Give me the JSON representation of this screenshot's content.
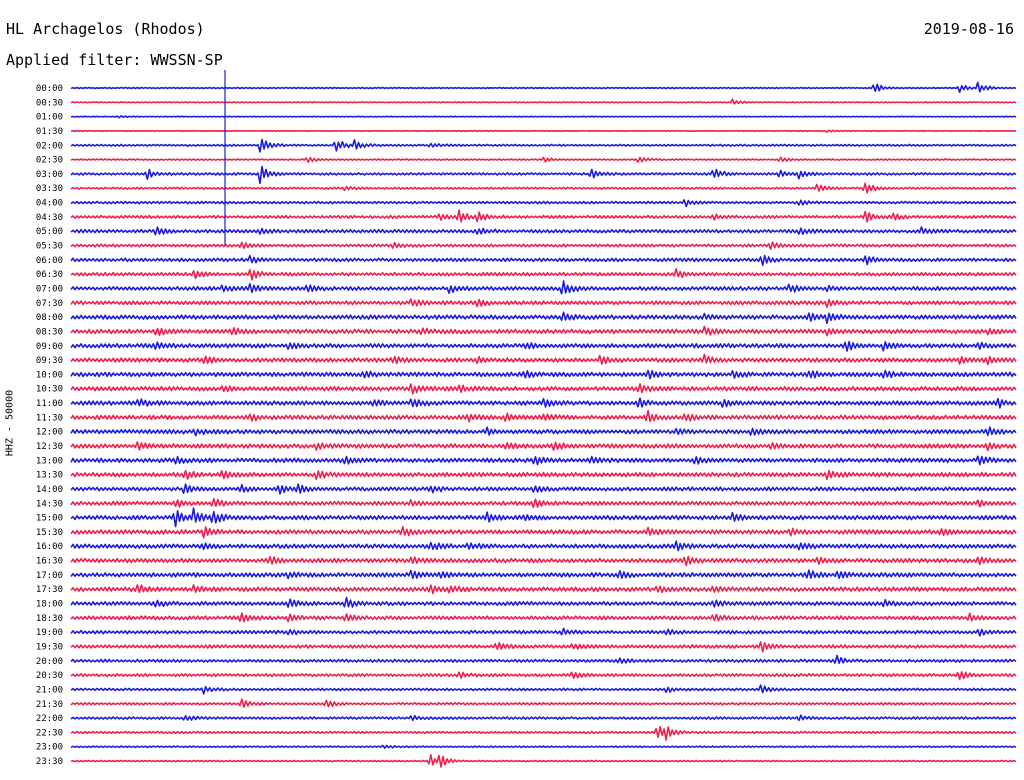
{
  "header": {
    "station": "HL Archagelos (Rhodos)",
    "date": "2019-08-16",
    "filter": "Applied filter: WWSSN-SP"
  },
  "side_label": "HHZ - 50000",
  "colors": {
    "blue": "#1c1ce0",
    "red": "#f0204e"
  },
  "chart_data": {
    "type": "line",
    "title": "HL Archagelos (Rhodos)",
    "subtitle": "Applied filter: WWSSN-SP",
    "ylabel": "HHZ - 50000",
    "color_cycle": [
      "blue",
      "red"
    ],
    "rows": [
      "00:00",
      "00:30",
      "01:00",
      "01:30",
      "02:00",
      "02:30",
      "03:00",
      "03:30",
      "04:00",
      "04:30",
      "05:00",
      "05:30",
      "06:00",
      "06:30",
      "07:00",
      "07:30",
      "08:00",
      "08:30",
      "09:00",
      "09:30",
      "10:00",
      "10:30",
      "11:00",
      "11:30",
      "12:00",
      "12:30",
      "13:00",
      "13:30",
      "14:00",
      "14:30",
      "15:00",
      "15:30",
      "16:00",
      "16:30",
      "17:00",
      "17:30",
      "18:00",
      "18:30",
      "19:00",
      "19:30",
      "20:00",
      "20:30",
      "21:00",
      "21:30",
      "22:00",
      "22:30",
      "23:00",
      "23:30"
    ],
    "noise_level": [
      0.25,
      0.2,
      0.15,
      0.15,
      0.4,
      0.3,
      0.5,
      0.4,
      0.5,
      0.6,
      0.7,
      0.6,
      0.7,
      0.7,
      0.8,
      0.8,
      0.9,
      0.9,
      0.9,
      0.9,
      0.9,
      0.9,
      0.9,
      0.9,
      0.9,
      0.9,
      0.9,
      0.9,
      0.8,
      0.8,
      0.9,
      0.9,
      0.9,
      0.9,
      0.9,
      0.9,
      0.8,
      0.8,
      0.7,
      0.7,
      0.6,
      0.6,
      0.5,
      0.5,
      0.5,
      0.4,
      0.3,
      0.3
    ],
    "events": [
      [
        [
          0.85,
          5.0
        ],
        [
          0.94,
          3.5
        ],
        [
          0.96,
          5.0
        ]
      ],
      [
        [
          0.7,
          2.5
        ]
      ],
      [
        [
          0.05,
          1.0
        ]
      ],
      [
        [
          0.8,
          1.0
        ]
      ],
      [
        [
          0.2,
          9.0
        ],
        [
          0.28,
          6.0
        ],
        [
          0.3,
          4.0
        ],
        [
          0.38,
          2.0
        ]
      ],
      [
        [
          0.25,
          3.0
        ],
        [
          0.5,
          2.0
        ],
        [
          0.6,
          3.5
        ],
        [
          0.75,
          2.5
        ]
      ],
      [
        [
          0.08,
          4.0
        ],
        [
          0.2,
          7.0
        ],
        [
          0.55,
          3.5
        ],
        [
          0.68,
          4.5
        ],
        [
          0.75,
          3.0
        ],
        [
          0.77,
          4.0
        ]
      ],
      [
        [
          0.29,
          2.0
        ],
        [
          0.79,
          4.0
        ],
        [
          0.84,
          6.0
        ]
      ],
      [
        [
          0.65,
          3.0
        ],
        [
          0.77,
          2.5
        ]
      ],
      [
        [
          0.39,
          3.0
        ],
        [
          0.41,
          5.0
        ],
        [
          0.43,
          4.5
        ],
        [
          0.68,
          2.0
        ],
        [
          0.84,
          5.0
        ],
        [
          0.87,
          2.5
        ]
      ],
      [
        [
          0.09,
          3.5
        ],
        [
          0.2,
          2.5
        ],
        [
          0.43,
          2.5
        ],
        [
          0.77,
          3.0
        ],
        [
          0.9,
          2.5
        ]
      ],
      [
        [
          0.18,
          2.5
        ],
        [
          0.34,
          2.0
        ],
        [
          0.74,
          3.0
        ]
      ],
      [
        [
          0.19,
          3.0
        ],
        [
          0.73,
          4.0
        ],
        [
          0.84,
          4.0
        ]
      ],
      [
        [
          0.13,
          3.5
        ],
        [
          0.19,
          4.5
        ],
        [
          0.64,
          3.5
        ]
      ],
      [
        [
          0.16,
          3.0
        ],
        [
          0.19,
          4.0
        ],
        [
          0.25,
          3.0
        ],
        [
          0.4,
          3.0
        ],
        [
          0.52,
          6.0
        ],
        [
          0.76,
          3.5
        ],
        [
          0.8,
          2.0
        ]
      ],
      [
        [
          0.36,
          4.0
        ],
        [
          0.43,
          2.5
        ],
        [
          0.8,
          3.0
        ]
      ],
      [
        [
          0.52,
          3.0
        ],
        [
          0.67,
          2.5
        ],
        [
          0.78,
          3.5
        ],
        [
          0.8,
          4.0
        ]
      ],
      [
        [
          0.09,
          3.0
        ],
        [
          0.17,
          2.5
        ],
        [
          0.37,
          2.5
        ],
        [
          0.67,
          3.0
        ],
        [
          0.8,
          2.5
        ],
        [
          0.97,
          2.0
        ]
      ],
      [
        [
          0.09,
          2.5
        ],
        [
          0.23,
          2.0
        ],
        [
          0.48,
          2.5
        ],
        [
          0.82,
          4.0
        ],
        [
          0.86,
          3.5
        ],
        [
          0.96,
          2.5
        ]
      ],
      [
        [
          0.14,
          3.0
        ],
        [
          0.34,
          2.5
        ],
        [
          0.43,
          2.5
        ],
        [
          0.56,
          3.0
        ],
        [
          0.67,
          3.0
        ],
        [
          0.94,
          2.5
        ],
        [
          0.97,
          2.5
        ]
      ],
      [
        [
          0.31,
          2.5
        ],
        [
          0.48,
          2.5
        ],
        [
          0.61,
          3.0
        ],
        [
          0.7,
          3.5
        ],
        [
          0.78,
          3.0
        ],
        [
          0.86,
          3.5
        ]
      ],
      [
        [
          0.16,
          2.0
        ],
        [
          0.36,
          4.0
        ],
        [
          0.41,
          2.5
        ],
        [
          0.6,
          3.5
        ]
      ],
      [
        [
          0.07,
          3.5
        ],
        [
          0.32,
          2.5
        ],
        [
          0.36,
          4.0
        ],
        [
          0.5,
          3.5
        ],
        [
          0.6,
          3.0
        ],
        [
          0.69,
          2.5
        ],
        [
          0.98,
          3.5
        ]
      ],
      [
        [
          0.19,
          3.0
        ],
        [
          0.42,
          3.0
        ],
        [
          0.46,
          3.0
        ],
        [
          0.5,
          3.0
        ],
        [
          0.61,
          4.5
        ],
        [
          0.65,
          3.0
        ]
      ],
      [
        [
          0.13,
          2.5
        ],
        [
          0.44,
          2.5
        ],
        [
          0.64,
          2.5
        ],
        [
          0.72,
          3.0
        ],
        [
          0.97,
          4.0
        ]
      ],
      [
        [
          0.07,
          2.5
        ],
        [
          0.26,
          2.5
        ],
        [
          0.46,
          2.5
        ],
        [
          0.51,
          3.5
        ],
        [
          0.74,
          2.5
        ],
        [
          0.97,
          2.5
        ]
      ],
      [
        [
          0.11,
          2.5
        ],
        [
          0.29,
          3.0
        ],
        [
          0.49,
          3.5
        ],
        [
          0.55,
          2.5
        ],
        [
          0.66,
          2.5
        ],
        [
          0.96,
          3.5
        ]
      ],
      [
        [
          0.12,
          3.5
        ],
        [
          0.16,
          3.0
        ],
        [
          0.26,
          3.0
        ],
        [
          0.8,
          3.0
        ]
      ],
      [
        [
          0.12,
          4.0
        ],
        [
          0.18,
          3.0
        ],
        [
          0.22,
          3.5
        ],
        [
          0.24,
          3.0
        ],
        [
          0.38,
          3.0
        ],
        [
          0.49,
          2.5
        ]
      ],
      [
        [
          0.11,
          3.5
        ],
        [
          0.15,
          4.0
        ],
        [
          0.36,
          2.5
        ],
        [
          0.49,
          3.5
        ],
        [
          0.96,
          2.0
        ]
      ],
      [
        [
          0.11,
          6.0
        ],
        [
          0.13,
          6.5
        ],
        [
          0.15,
          6.0
        ],
        [
          0.44,
          3.5
        ],
        [
          0.48,
          2.5
        ],
        [
          0.7,
          2.5
        ]
      ],
      [
        [
          0.14,
          4.0
        ],
        [
          0.35,
          4.0
        ],
        [
          0.61,
          3.0
        ],
        [
          0.76,
          2.5
        ],
        [
          0.92,
          2.0
        ]
      ],
      [
        [
          0.14,
          2.5
        ],
        [
          0.38,
          4.0
        ],
        [
          0.42,
          3.0
        ],
        [
          0.64,
          3.0
        ],
        [
          0.77,
          3.0
        ]
      ],
      [
        [
          0.21,
          3.5
        ],
        [
          0.36,
          3.0
        ],
        [
          0.65,
          3.5
        ],
        [
          0.79,
          3.0
        ],
        [
          0.96,
          2.5
        ]
      ],
      [
        [
          0.23,
          2.5
        ],
        [
          0.36,
          3.5
        ],
        [
          0.39,
          2.5
        ],
        [
          0.58,
          2.5
        ],
        [
          0.78,
          3.5
        ],
        [
          0.81,
          3.0
        ]
      ],
      [
        [
          0.07,
          3.5
        ],
        [
          0.13,
          2.5
        ],
        [
          0.38,
          3.0
        ],
        [
          0.4,
          3.0
        ],
        [
          0.62,
          2.5
        ],
        [
          0.68,
          3.0
        ]
      ],
      [
        [
          0.09,
          2.5
        ],
        [
          0.23,
          3.5
        ],
        [
          0.29,
          4.5
        ],
        [
          0.68,
          2.5
        ],
        [
          0.86,
          2.5
        ]
      ],
      [
        [
          0.18,
          3.5
        ],
        [
          0.23,
          2.5
        ],
        [
          0.29,
          3.0
        ],
        [
          0.68,
          3.0
        ],
        [
          0.95,
          3.0
        ]
      ],
      [
        [
          0.23,
          2.0
        ],
        [
          0.52,
          2.5
        ],
        [
          0.63,
          2.5
        ],
        [
          0.96,
          2.5
        ]
      ],
      [
        [
          0.45,
          3.0
        ],
        [
          0.53,
          2.5
        ],
        [
          0.73,
          4.0
        ]
      ],
      [
        [
          0.58,
          2.5
        ],
        [
          0.81,
          4.0
        ]
      ],
      [
        [
          0.41,
          2.5
        ],
        [
          0.53,
          3.5
        ],
        [
          0.94,
          4.5
        ]
      ],
      [
        [
          0.14,
          3.0
        ],
        [
          0.63,
          2.5
        ],
        [
          0.73,
          3.5
        ]
      ],
      [
        [
          0.18,
          3.5
        ],
        [
          0.27,
          4.0
        ]
      ],
      [
        [
          0.12,
          3.0
        ],
        [
          0.36,
          2.0
        ],
        [
          0.77,
          2.0
        ]
      ],
      [
        [
          0.62,
          6.5
        ],
        [
          0.63,
          5.0
        ]
      ],
      [
        [
          0.33,
          1.5
        ]
      ],
      [
        [
          0.38,
          5.5
        ],
        [
          0.39,
          4.5
        ]
      ]
    ]
  }
}
